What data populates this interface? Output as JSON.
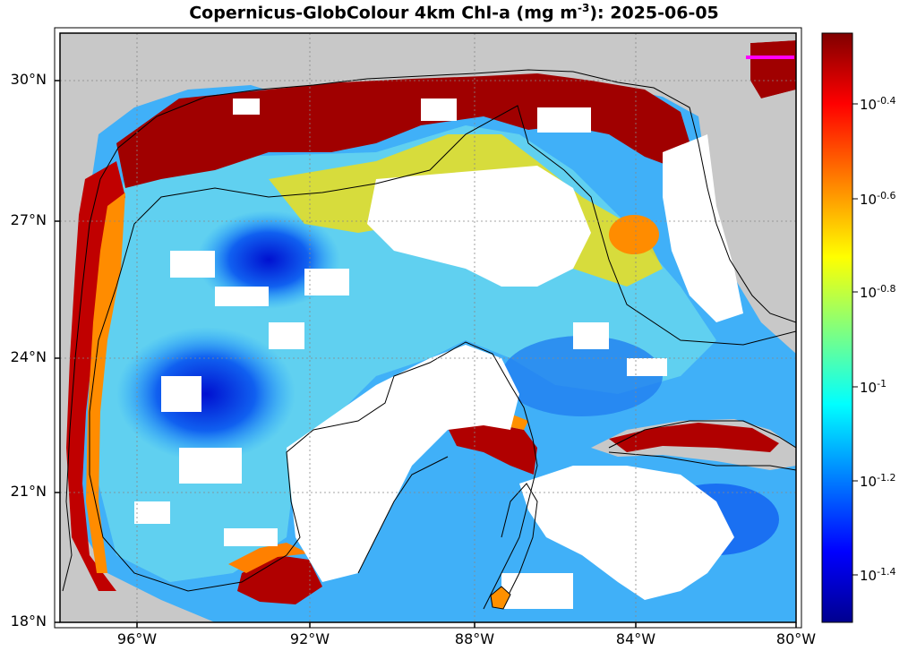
{
  "title": {
    "prefix": "Copernicus-GlobColour 4km Chl-a (mg m",
    "exponent": "-3",
    "suffix": "): 2025-06-05"
  },
  "map": {
    "lat_labels": [
      "30°N",
      "27°N",
      "24°N",
      "21°N",
      "18°N"
    ],
    "lon_labels": [
      "96°W",
      "92°W",
      "88°W",
      "84°W",
      "80°W"
    ],
    "colors": {
      "land": "#c8c8c8",
      "no_data": "#ffffff",
      "marker": "#ff00ff"
    }
  },
  "colorbar": {
    "base": "10",
    "exponents": [
      "-0.4",
      "-0.6",
      "-0.8",
      "-1",
      "-1.2",
      "-1.4"
    ],
    "colors": [
      "#00008f",
      "#0000ff",
      "#0080ff",
      "#00ffff",
      "#80ff80",
      "#ffff00",
      "#ff8000",
      "#ff0000",
      "#800000"
    ]
  }
}
